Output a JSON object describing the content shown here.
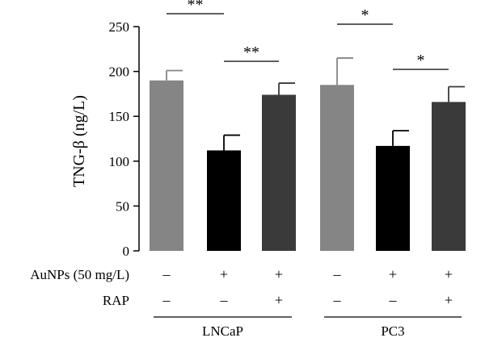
{
  "chart_data": {
    "type": "bar",
    "ylabel": "TNG-β (ng/L)",
    "ylim": [
      0,
      250
    ],
    "yticks": [
      0,
      50,
      100,
      150,
      200,
      250
    ],
    "groups": [
      "LNCaP",
      "PC3"
    ],
    "conditions": [
      {
        "label": "AuNPs (50 mg/L)",
        "signs": [
          "–",
          "+",
          "+",
          "–",
          "+",
          "+"
        ]
      },
      {
        "label": "RAP",
        "signs": [
          "–",
          "–",
          "+",
          "–",
          "–",
          "+"
        ]
      }
    ],
    "bars": [
      {
        "group": "LNCaP",
        "value": 190,
        "error": 11,
        "color": "#858585"
      },
      {
        "group": "LNCaP",
        "value": 112,
        "error": 17,
        "color": "#000000"
      },
      {
        "group": "LNCaP",
        "value": 174,
        "error": 13,
        "color": "#3a3a3a"
      },
      {
        "group": "PC3",
        "value": 185,
        "error": 30,
        "color": "#858585"
      },
      {
        "group": "PC3",
        "value": 117,
        "error": 17,
        "color": "#000000"
      },
      {
        "group": "PC3",
        "value": 166,
        "error": 17,
        "color": "#3a3a3a"
      }
    ],
    "significance": [
      {
        "from": 0,
        "to": 1,
        "label": "**"
      },
      {
        "from": 1,
        "to": 2,
        "label": "**"
      },
      {
        "from": 3,
        "to": 4,
        "label": "*"
      },
      {
        "from": 4,
        "to": 5,
        "label": "*"
      }
    ],
    "grid": false,
    "legend": "none"
  }
}
